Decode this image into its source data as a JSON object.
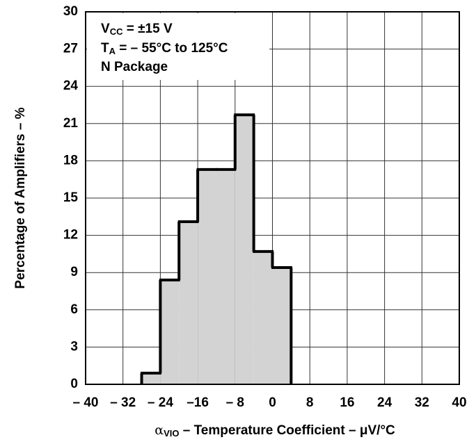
{
  "chart_data": {
    "type": "histogram",
    "bins": [
      -28,
      -24,
      -20,
      -16,
      -12,
      -8,
      -4,
      0,
      4
    ],
    "values": [
      0.9,
      8.4,
      13.1,
      17.3,
      17.3,
      21.7,
      10.7,
      9.4
    ],
    "color": "#d3d3d3",
    "edge_color": "#000000",
    "xlim": [
      -40,
      40
    ],
    "xticks": [
      {
        "value": -40,
        "label": "– 40"
      },
      {
        "value": -32,
        "label": "– 32"
      },
      {
        "value": -24,
        "label": "– 24"
      },
      {
        "value": -16,
        "label": "–16"
      },
      {
        "value": -8,
        "label": "– 8"
      },
      0,
      8,
      16,
      24,
      32,
      40
    ],
    "ylim": [
      0,
      30
    ],
    "yticks": [
      0,
      3,
      6,
      9,
      12,
      15,
      18,
      21,
      24,
      27,
      30
    ],
    "grid": true,
    "y_label": "Percentage of Amplifiers – %",
    "x_label": {
      "symbol": "α",
      "sub": "VIO",
      "text": " – Temperature Coefficient – μV/°C"
    },
    "annotations": [
      {
        "main": "V",
        "sub": "CC",
        "rest": " = ±15 V"
      },
      {
        "main": "T",
        "sub": "A",
        "rest": " = – 55°C to 125°C"
      },
      {
        "main": "N Package"
      }
    ]
  }
}
